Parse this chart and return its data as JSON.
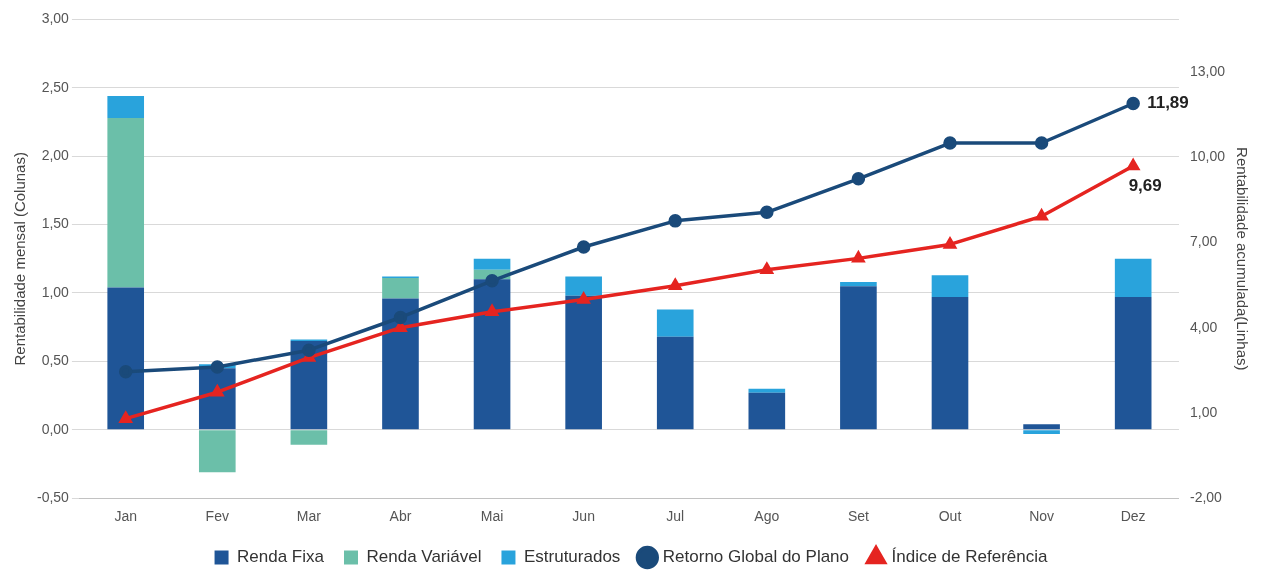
{
  "chart_data": {
    "type": "bar",
    "stacked": true,
    "ylabel": "Rentabilidade mensal (Colunas)",
    "y2label": "Rentabilidade acumulada(Linhas)",
    "categories": [
      "Jan",
      "Fev",
      "Mar",
      "Abr",
      "Mai",
      "Jun",
      "Jul",
      "Ago",
      "Set",
      "Out",
      "Nov",
      "Dez"
    ],
    "series": [
      {
        "name": "Renda Fixa",
        "color": "#1f5597",
        "values": [
          1.04,
          0.45,
          0.65,
          0.96,
          1.1,
          0.98,
          0.68,
          0.27,
          1.05,
          0.97,
          0.04,
          0.97
        ]
      },
      {
        "name": "Renda Variável",
        "color": "#6bbfa9",
        "values": [
          1.24,
          -0.31,
          -0.11,
          0.15,
          0.07,
          null,
          null,
          null,
          null,
          null,
          null,
          null
        ]
      },
      {
        "name": "Estruturados",
        "color": "#29a3dc",
        "values": [
          0.16,
          0.03,
          0.01,
          0.01,
          0.08,
          0.14,
          0.2,
          0.03,
          0.03,
          0.16,
          -0.03,
          0.28
        ]
      },
      {
        "name": "Retorno Global do Plano",
        "type": "line",
        "axis": "y2",
        "marker": "circle",
        "color": "#1a4a7a",
        "values": [
          2.45,
          2.62,
          3.21,
          4.36,
          5.65,
          6.84,
          7.76,
          8.06,
          9.24,
          10.5,
          10.5,
          11.89
        ],
        "value_labels": [
          null,
          null,
          null,
          null,
          null,
          null,
          null,
          null,
          null,
          null,
          null,
          "11,89"
        ]
      },
      {
        "name": "Índice de Referência",
        "type": "line",
        "axis": "y2",
        "marker": "triangle",
        "color": "#e52420",
        "values": [
          0.8,
          1.73,
          2.95,
          4.0,
          4.56,
          4.99,
          5.48,
          6.04,
          6.44,
          6.93,
          7.92,
          9.69
        ],
        "value_labels": [
          null,
          null,
          null,
          null,
          null,
          null,
          null,
          null,
          null,
          null,
          null,
          "9,69"
        ]
      }
    ],
    "ylim": [
      -0.5,
      3.0
    ],
    "yticks": [
      {
        "value": -0.5,
        "label": "-0,50"
      },
      {
        "value": 0,
        "label": "0,00"
      },
      {
        "value": 0.5,
        "label": "0,50"
      },
      {
        "value": 1,
        "label": "1,00"
      },
      {
        "value": 1.5,
        "label": "1,50"
      },
      {
        "value": 2,
        "label": "2,00"
      },
      {
        "value": 2.5,
        "label": "2,50"
      },
      {
        "value": 3,
        "label": "3,00"
      }
    ],
    "y2lim": [
      -2,
      14.85
    ],
    "y2ticks": [
      {
        "value": -2,
        "label": "-2,00"
      },
      {
        "value": 1,
        "label": "1,00"
      },
      {
        "value": 4,
        "label": "4,00"
      },
      {
        "value": 7,
        "label": "7,00"
      },
      {
        "value": 10,
        "label": "10,00"
      },
      {
        "value": 13,
        "label": "13,00"
      }
    ],
    "grid": "y",
    "legend": "bottom"
  }
}
